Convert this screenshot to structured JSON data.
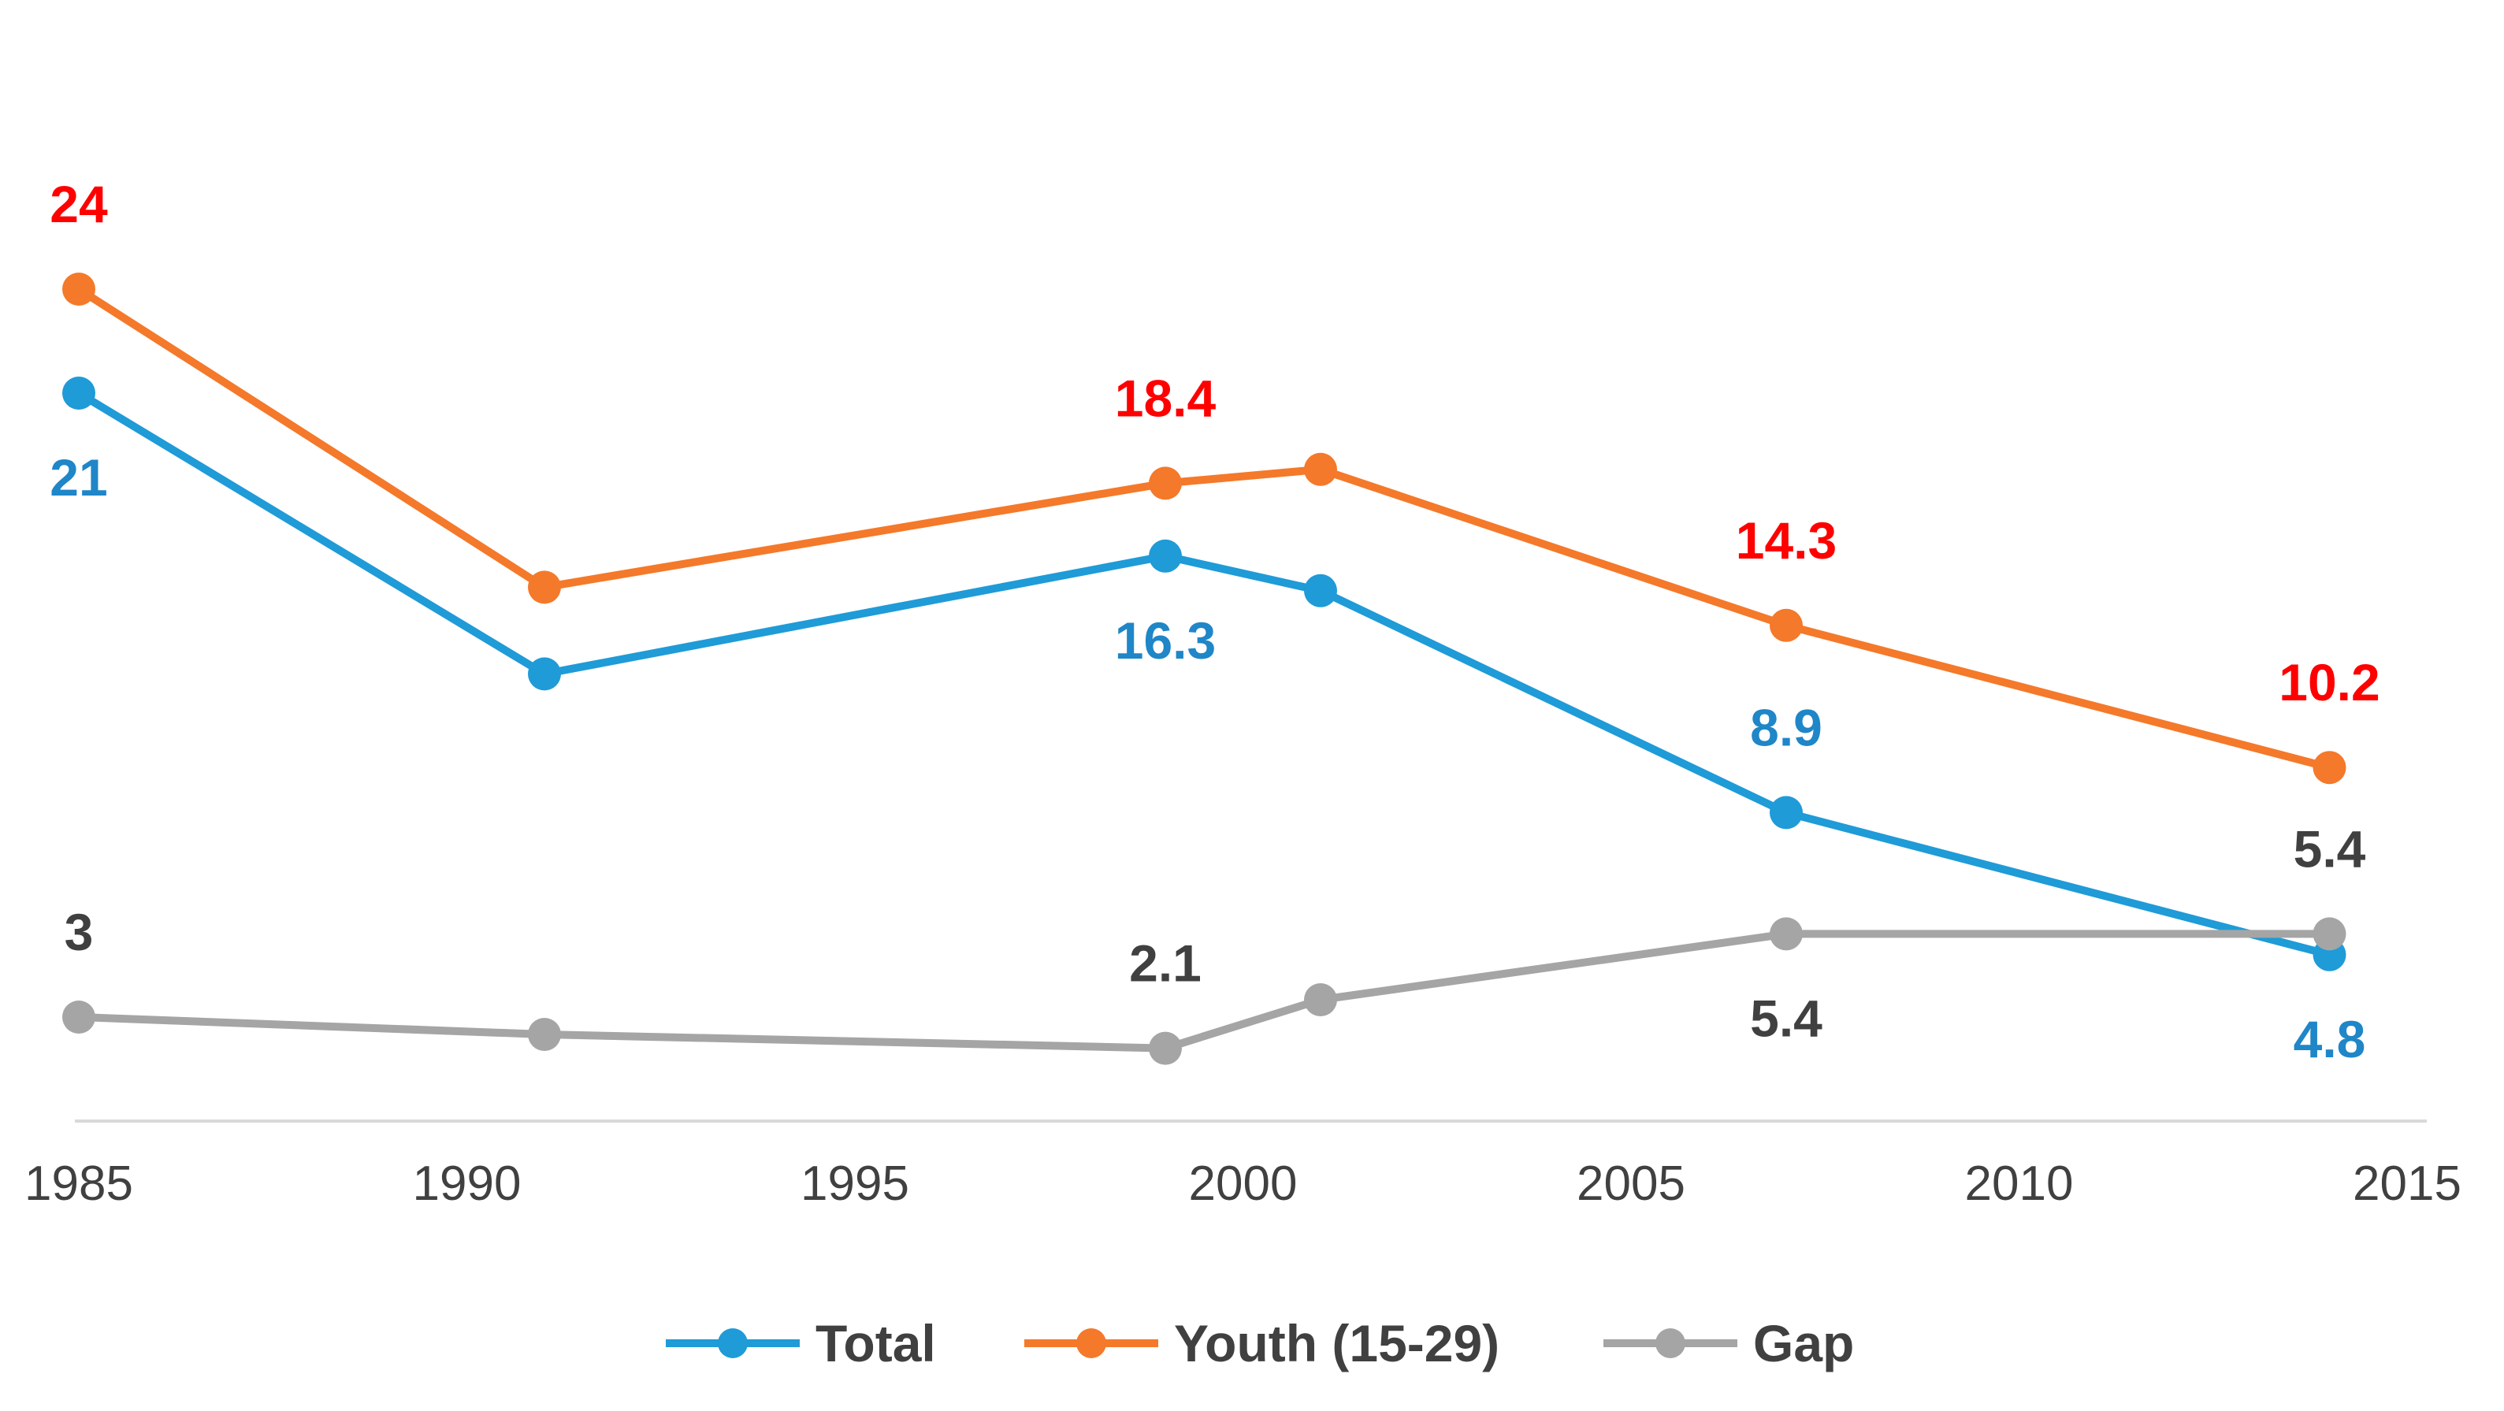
{
  "chart_data": {
    "type": "line",
    "title": "",
    "xlabel": "",
    "ylabel": "",
    "xlim": [
      1985,
      2015
    ],
    "ylim": [
      0,
      26
    ],
    "x_ticks": [
      {
        "value": 1985,
        "label": "1985"
      },
      {
        "value": 1990,
        "label": "1990"
      },
      {
        "value": 1995,
        "label": "1995"
      },
      {
        "value": 2000,
        "label": "2000"
      },
      {
        "value": 2005,
        "label": "2005"
      },
      {
        "value": 2010,
        "label": "2010"
      },
      {
        "value": 2015,
        "label": "2015"
      }
    ],
    "grid": false,
    "legend_position": "bottom",
    "series": [
      {
        "name": "Total",
        "color": "#1f9bd7",
        "label_color": "#1f86c8",
        "points": [
          {
            "x": 1985,
            "y": 21
          },
          {
            "x": 1991,
            "y": 12.9
          },
          {
            "x": 1999,
            "y": 16.3
          },
          {
            "x": 2001,
            "y": 15.3
          },
          {
            "x": 2007,
            "y": 8.9
          },
          {
            "x": 2014,
            "y": 4.8
          }
        ]
      },
      {
        "name": "Youth (15-29)",
        "color": "#f4792a",
        "label_color": "#ff0000",
        "points": [
          {
            "x": 1985,
            "y": 24
          },
          {
            "x": 1991,
            "y": 15.4
          },
          {
            "x": 1999,
            "y": 18.4
          },
          {
            "x": 2001,
            "y": 18.8
          },
          {
            "x": 2007,
            "y": 14.3
          },
          {
            "x": 2014,
            "y": 10.2
          }
        ]
      },
      {
        "name": "Gap",
        "color": "#a5a5a5",
        "label_color": "#404040",
        "points": [
          {
            "x": 1985,
            "y": 3
          },
          {
            "x": 1991,
            "y": 2.5
          },
          {
            "x": 1999,
            "y": 2.1
          },
          {
            "x": 2001,
            "y": 3.5
          },
          {
            "x": 2007,
            "y": 5.4
          },
          {
            "x": 2014,
            "y": 5.4
          }
        ]
      }
    ],
    "data_labels": [
      {
        "series": "Youth (15-29)",
        "x": 1985,
        "text": "24",
        "placement": "above"
      },
      {
        "series": "Youth (15-29)",
        "x": 1999,
        "text": "18.4",
        "placement": "above"
      },
      {
        "series": "Youth (15-29)",
        "x": 2007,
        "text": "14.3",
        "placement": "above"
      },
      {
        "series": "Youth (15-29)",
        "x": 2014,
        "text": "10.2",
        "placement": "above"
      },
      {
        "series": "Total",
        "x": 1985,
        "text": "21",
        "placement": "below"
      },
      {
        "series": "Total",
        "x": 1999,
        "text": "16.3",
        "placement": "below"
      },
      {
        "series": "Total",
        "x": 2007,
        "text": "8.9",
        "placement": "above"
      },
      {
        "series": "Total",
        "x": 2014,
        "text": "4.8",
        "placement": "below"
      },
      {
        "series": "Gap",
        "x": 1985,
        "text": "3",
        "placement": "above"
      },
      {
        "series": "Gap",
        "x": 1999,
        "text": "2.1",
        "placement": "above"
      },
      {
        "series": "Gap",
        "x": 2007,
        "text": "5.4",
        "placement": "below"
      },
      {
        "series": "Gap",
        "x": 2014,
        "text": "5.4",
        "placement": "above"
      }
    ]
  }
}
